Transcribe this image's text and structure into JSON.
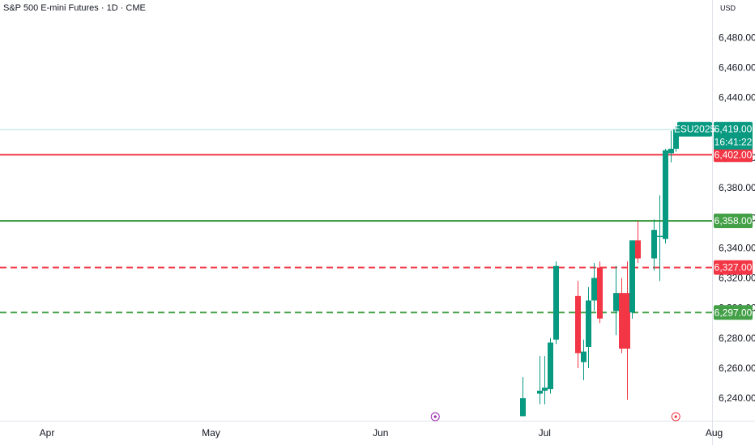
{
  "header": {
    "title": "S&P 500 E-mini Futures · 1D · CME",
    "currency": "USD"
  },
  "colors": {
    "up": "#089981",
    "down": "#f23645",
    "green_line": "#43a047",
    "red_line": "#f23645",
    "axis_text": "#131722",
    "last_price_line": "#b2dfdb"
  },
  "chart_data": {
    "type": "candlestick",
    "title": "S&P 500 E-mini Futures · 1D · CME",
    "ylim": [
      6225,
      6505
    ],
    "y_ticks": [
      "6,240.00",
      "6,260.00",
      "6,280.00",
      "6,300.00",
      "6,320.00",
      "6,340.00",
      "6,360.00",
      "6,380.00",
      "6,400.00",
      "6,440.00",
      "6,460.00",
      "6,480.00"
    ],
    "x_labels": [
      "Apr",
      "May",
      "Jun",
      "Jul",
      "Aug"
    ],
    "candles": [
      {
        "date": "2025-06-27",
        "open": 6228,
        "high": 6254,
        "low": 6228,
        "close": 6240
      },
      {
        "date": "2025-06-30",
        "open": 6243,
        "high": 6268,
        "low": 6236,
        "close": 6245
      },
      {
        "date": "2025-07-01",
        "open": 6245,
        "high": 6268,
        "low": 6236,
        "close": 6247
      },
      {
        "date": "2025-07-02",
        "open": 6246,
        "high": 6280,
        "low": 6243,
        "close": 6277
      },
      {
        "date": "2025-07-03",
        "open": 6279,
        "high": 6331,
        "low": 6276,
        "close": 6328
      },
      {
        "date": "2025-07-07",
        "open": 6308,
        "high": 6318,
        "low": 6260,
        "close": 6270
      },
      {
        "date": "2025-07-08",
        "open": 6264,
        "high": 6279,
        "low": 6252,
        "close": 6271
      },
      {
        "date": "2025-07-09",
        "open": 6274,
        "high": 6314,
        "low": 6260,
        "close": 6305
      },
      {
        "date": "2025-07-10",
        "open": 6305,
        "high": 6330,
        "low": 6298,
        "close": 6320
      },
      {
        "date": "2025-07-11",
        "open": 6327,
        "high": 6331,
        "low": 6290,
        "close": 6293
      },
      {
        "date": "2025-07-14",
        "open": 6298,
        "high": 6328,
        "low": 6282,
        "close": 6310
      },
      {
        "date": "2025-07-15",
        "open": 6310,
        "high": 6320,
        "low": 6270,
        "close": 6273
      },
      {
        "date": "2025-07-16",
        "open": 6310,
        "high": 6331,
        "low": 6239,
        "close": 6273
      },
      {
        "date": "2025-07-17",
        "open": 6297,
        "high": 6345,
        "low": 6293,
        "close": 6345
      },
      {
        "date": "2025-07-18",
        "open": 6345,
        "high": 6358,
        "low": 6330,
        "close": 6333
      },
      {
        "date": "2025-07-21",
        "open": 6333,
        "high": 6359,
        "low": 6325,
        "close": 6352
      },
      {
        "date": "2025-07-22",
        "open": 6348,
        "high": 6375,
        "low": 6318,
        "close": 6348
      },
      {
        "date": "2025-07-23",
        "open": 6346,
        "high": 6406,
        "low": 6343,
        "close": 6405
      },
      {
        "date": "2025-07-24",
        "open": 6403,
        "high": 6418,
        "low": 6397,
        "close": 6406
      },
      {
        "date": "2025-07-25",
        "open": 6406,
        "high": 6421,
        "low": 6404,
        "close": 6419
      }
    ],
    "horizontal_lines": [
      {
        "price": 6402,
        "label": "6,402.00",
        "style": "solid",
        "color": "#f23645"
      },
      {
        "price": 6358,
        "label": "6,358.00",
        "style": "solid",
        "color": "#43a047"
      },
      {
        "price": 6327,
        "label": "6,327.00",
        "style": "dashed",
        "color": "#f23645"
      },
      {
        "price": 6297,
        "label": "6,297.00",
        "style": "dashed",
        "color": "#43a047"
      }
    ],
    "last_price": {
      "symbol": "ESU2025",
      "price": 6419,
      "label": "6,419.00",
      "countdown": "16:41:22",
      "color": "#089981"
    },
    "event_markers": [
      {
        "date": "2025-06-11",
        "icon": "dividend-marker-icon",
        "color": "#9c27b0"
      },
      {
        "date": "2025-07-25",
        "icon": "earnings-marker-icon",
        "color": "#f23645"
      }
    ]
  }
}
